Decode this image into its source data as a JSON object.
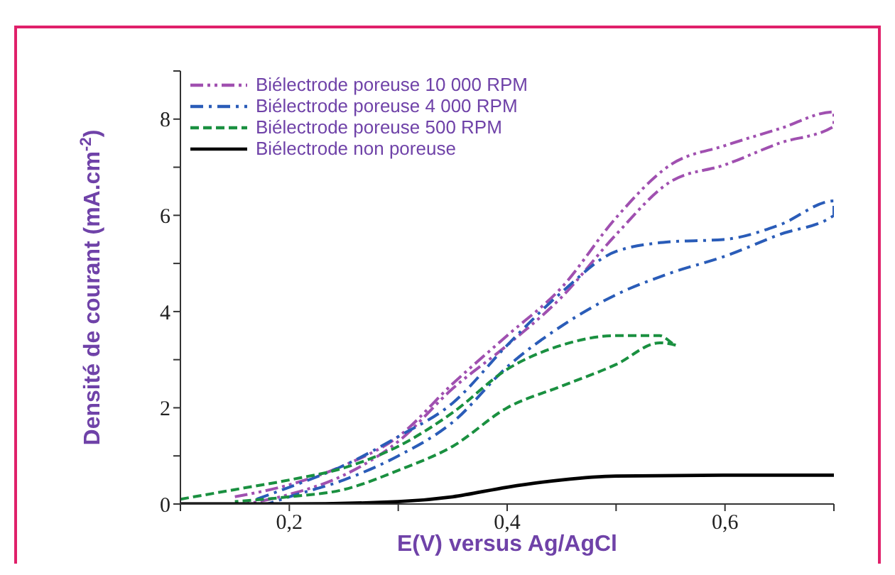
{
  "chart_data": {
    "type": "line",
    "xlabel": "E(V) versus Ag/AgCl",
    "ylabel": "Densité de courant (mA.cm$^{-2}$)",
    "xlim": [
      0.1,
      0.7
    ],
    "xticks": [
      {
        "value": 0.1,
        "label": null
      },
      {
        "value": 0.2,
        "label": "0,2"
      },
      {
        "value": 0.3,
        "label": null
      },
      {
        "value": 0.4,
        "label": "0,4"
      },
      {
        "value": 0.5,
        "label": null
      },
      {
        "value": 0.6,
        "label": "0,6"
      },
      {
        "value": 0.7,
        "label": null
      }
    ],
    "ylim": [
      0,
      9
    ],
    "yticks": [
      0,
      {
        "value": 1,
        "label": null
      },
      2,
      {
        "value": 3,
        "label": null
      },
      4,
      {
        "value": 5,
        "label": null
      },
      6,
      {
        "value": 7,
        "label": null
      },
      8,
      {
        "value": 9,
        "label": null
      }
    ],
    "grid": false,
    "legend": "top left",
    "marker": "none",
    "series": [
      {
        "name": "Biélectrode poreuse 10 000 RPM",
        "color": "#a050b0",
        "line_style": "dashdotdot",
        "x": [
          0.15,
          0.2,
          0.25,
          0.3,
          0.35,
          0.4,
          0.45,
          0.5,
          0.55,
          0.6,
          0.65,
          0.7,
          0.7,
          0.65,
          0.6,
          0.55,
          0.5,
          0.45,
          0.4,
          0.35,
          0.3,
          0.25,
          0.2,
          0.16
        ],
        "values": [
          0.15,
          0.4,
          0.8,
          1.4,
          2.5,
          3.5,
          4.5,
          5.95,
          7.05,
          7.45,
          7.8,
          8.15,
          7.85,
          7.5,
          7.05,
          6.7,
          5.6,
          4.3,
          3.3,
          2.4,
          1.3,
          0.6,
          0.2,
          0.0
        ]
      },
      {
        "name": "Biélectrode poreuse 4 000 RPM",
        "color": "#2a5cb8",
        "line_style": "dashdot",
        "x": [
          0.17,
          0.2,
          0.25,
          0.3,
          0.35,
          0.4,
          0.45,
          0.5,
          0.55,
          0.6,
          0.65,
          0.7,
          0.7,
          0.65,
          0.6,
          0.55,
          0.5,
          0.45,
          0.4,
          0.35,
          0.3,
          0.25,
          0.2,
          0.18
        ],
        "values": [
          0.1,
          0.35,
          0.8,
          1.4,
          2.1,
          3.3,
          4.4,
          5.25,
          5.45,
          5.5,
          5.8,
          6.3,
          6.0,
          5.6,
          5.15,
          4.8,
          4.35,
          3.7,
          2.85,
          1.7,
          1.0,
          0.5,
          0.15,
          0.0
        ]
      },
      {
        "name": "Biélectrode poreuse 500 RPM",
        "color": "#1a9040",
        "line_style": "dashed",
        "x": [
          0.1,
          0.15,
          0.2,
          0.25,
          0.3,
          0.35,
          0.4,
          0.45,
          0.5,
          0.54,
          0.555,
          0.54,
          0.5,
          0.45,
          0.4,
          0.35,
          0.3,
          0.25,
          0.2,
          0.15
        ],
        "values": [
          0.1,
          0.3,
          0.5,
          0.75,
          1.2,
          1.9,
          2.8,
          3.3,
          3.5,
          3.5,
          3.3,
          3.35,
          2.9,
          2.45,
          2.0,
          1.2,
          0.7,
          0.3,
          0.15,
          0.05
        ]
      },
      {
        "name": "Biélectrode non poreuse",
        "color": "#000000",
        "line_style": "solid",
        "x": [
          0.1,
          0.2,
          0.3,
          0.35,
          0.4,
          0.45,
          0.5,
          0.6,
          0.7
        ],
        "values": [
          0,
          0,
          0.05,
          0.15,
          0.35,
          0.5,
          0.58,
          0.6,
          0.6
        ]
      }
    ]
  }
}
